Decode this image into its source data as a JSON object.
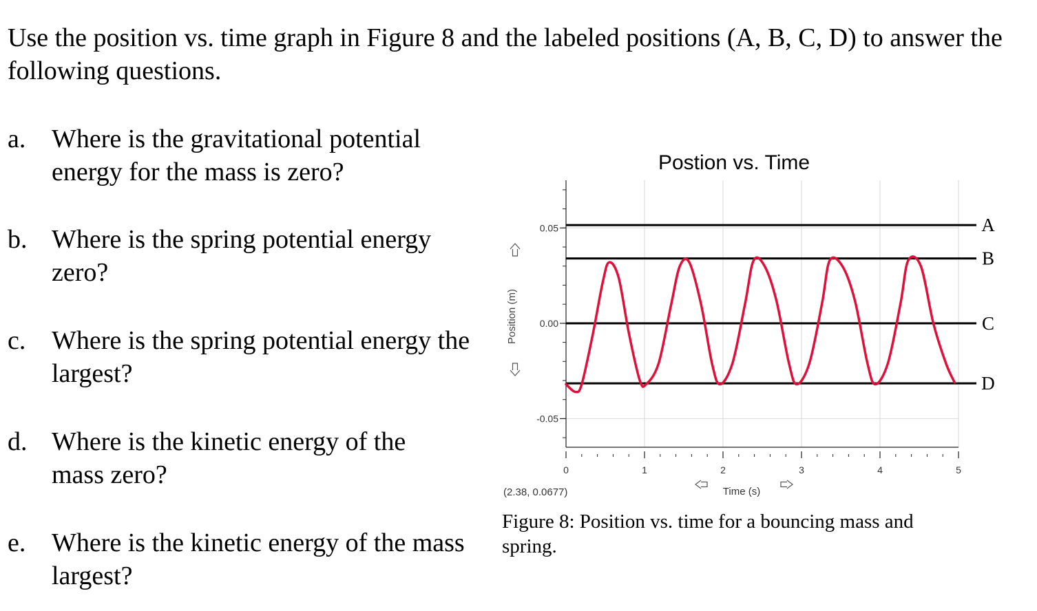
{
  "intro": "Use the position vs. time graph in Figure 8 and the labeled positions (A, B, C, D) to answer the following questions.",
  "questions": [
    {
      "letter": "a.",
      "text": "Where is the gravitational potential energy for the mass is zero?"
    },
    {
      "letter": "b.",
      "text": "Where is the spring potential energy zero?"
    },
    {
      "letter": "c.",
      "text": "Where is the spring potential energy the largest?"
    },
    {
      "letter": "d.",
      "text": "Where is the kinetic energy of the mass zero?"
    },
    {
      "letter": "e.",
      "text": "Where is the kinetic energy of the mass largest?"
    }
  ],
  "caption": "Figure 8: Position vs. time for a bouncing mass and spring.",
  "chart_data": {
    "type": "line",
    "title": "Postion vs. Time",
    "xlabel": "Time (s)",
    "ylabel": "Position (m)",
    "xlim": [
      0,
      5
    ],
    "ylim": [
      -0.065,
      0.075
    ],
    "xticks": [
      "0",
      "1",
      "2",
      "3",
      "4",
      "5"
    ],
    "yticks": [
      {
        "value": 0.05,
        "label": "0.05"
      },
      {
        "value": 0.0,
        "label": "0.00"
      },
      {
        "value": -0.05,
        "label": "-0.05"
      }
    ],
    "grid": true,
    "cursor_readout": "(2.38, 0.0677)",
    "reference_lines": [
      {
        "label": "A",
        "y": 0.0515
      },
      {
        "label": "B",
        "y": 0.034
      },
      {
        "label": "C",
        "y": 0.0
      },
      {
        "label": "D",
        "y": -0.0315
      }
    ],
    "series": [
      {
        "color": "#e0103a",
        "x": [
          0.0,
          0.12,
          0.2,
          0.34,
          0.47,
          0.55,
          0.67,
          0.8,
          0.94,
          1.02,
          1.18,
          1.34,
          1.45,
          1.57,
          1.72,
          1.86,
          1.96,
          2.12,
          2.28,
          2.39,
          2.53,
          2.68,
          2.84,
          2.94,
          3.1,
          3.26,
          3.36,
          3.52,
          3.68,
          3.84,
          3.94,
          4.1,
          4.26,
          4.36,
          4.52,
          4.68,
          4.84,
          4.95
        ],
        "y": [
          -0.032,
          -0.036,
          -0.032,
          -0.006,
          0.022,
          0.032,
          0.024,
          -0.005,
          -0.03,
          -0.032,
          -0.021,
          0.01,
          0.03,
          0.032,
          0.01,
          -0.021,
          -0.032,
          -0.021,
          0.01,
          0.033,
          0.03,
          0.012,
          -0.021,
          -0.032,
          -0.021,
          0.01,
          0.033,
          0.03,
          0.012,
          -0.021,
          -0.032,
          -0.021,
          0.01,
          0.033,
          0.03,
          0.0,
          -0.021,
          -0.031
        ]
      }
    ]
  }
}
